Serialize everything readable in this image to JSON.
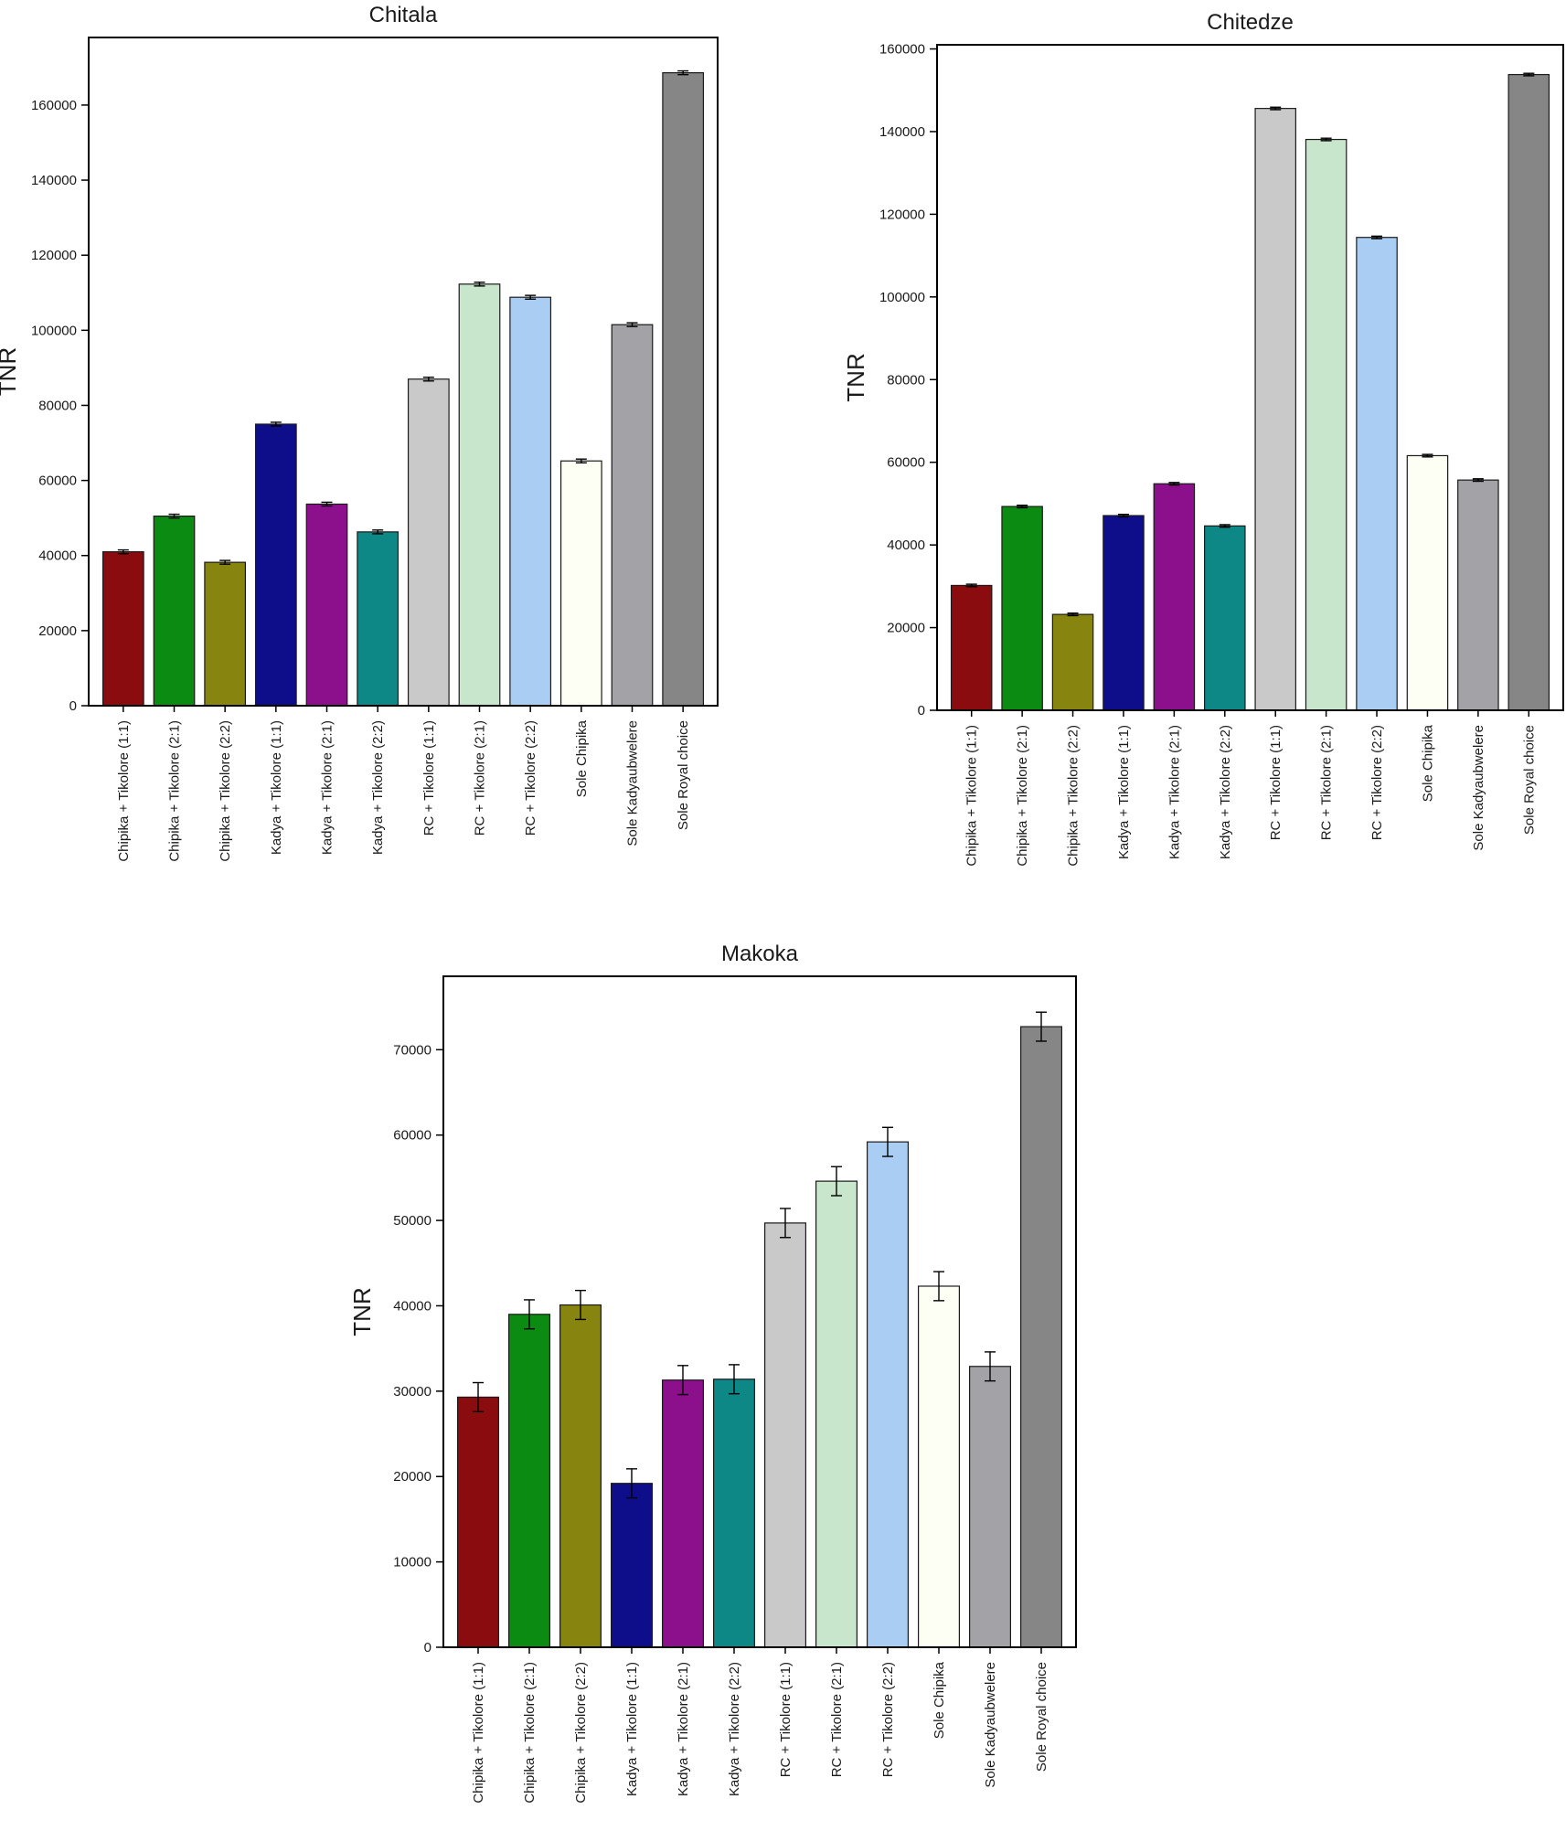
{
  "colors": [
    "#8b0c0e",
    "#0c8b12",
    "#87840f",
    "#0e0e8b",
    "#8c0f8c",
    "#0d8887",
    "#c9c9c9",
    "#c8e6cb",
    "#aacdf4",
    "#fefff4",
    "#a3a2a7",
    "#868686"
  ],
  "chart_data": [
    {
      "type": "bar",
      "title": "Chitala",
      "ylabel": "TNR",
      "xlabel": "",
      "ylim": [
        0,
        178000
      ],
      "yticks": [
        0,
        20000,
        40000,
        60000,
        80000,
        100000,
        120000,
        140000,
        160000
      ],
      "categories": [
        "Chipika + Tikolore (1:1)",
        "Chipika + Tikolore (2:1)",
        "Chipika + Tikolore (2:2)",
        "Kadya + Tikolore (1:1)",
        "Kadya + Tikolore (2:1)",
        "Kadya + Tikolore (2:2)",
        "RC + Tikolore (1:1)",
        "RC + Tikolore (2:1)",
        "RC + Tikolore (2:2)",
        "Sole Chipika",
        "Sole Kadyaubwelere",
        "Sole Royal choice"
      ],
      "values": [
        41000,
        50500,
        38200,
        75000,
        53700,
        46300,
        87000,
        112300,
        108800,
        65200,
        101500,
        168600
      ],
      "errors": [
        500,
        500,
        500,
        500,
        500,
        500,
        500,
        500,
        500,
        500,
        500,
        500
      ],
      "grid": false
    },
    {
      "type": "bar",
      "title": "Chitedze",
      "ylabel": "TNR",
      "xlabel": "",
      "ylim": [
        0,
        161000
      ],
      "yticks": [
        0,
        20000,
        40000,
        60000,
        80000,
        100000,
        120000,
        140000,
        160000
      ],
      "categories": [
        "Chipika + Tikolore (1:1)",
        "Chipika + Tikolore (2:1)",
        "Chipika + Tikolore (2:2)",
        "Kadya + Tikolore (1:1)",
        "Kadya + Tikolore (2:1)",
        "Kadya + Tikolore (2:2)",
        "RC + Tikolore (1:1)",
        "RC + Tikolore (2:1)",
        "RC + Tikolore (2:2)",
        "Sole Chipika",
        "Sole Kadyaubwelere",
        "Sole Royal choice"
      ],
      "values": [
        30200,
        49300,
        23200,
        47100,
        54800,
        44600,
        145600,
        138100,
        114400,
        61600,
        55700,
        153800
      ],
      "errors": [
        300,
        300,
        300,
        300,
        300,
        300,
        300,
        300,
        300,
        300,
        300,
        300
      ],
      "grid": false
    },
    {
      "type": "bar",
      "title": "Makoka",
      "ylabel": "TNR",
      "xlabel": "",
      "ylim": [
        0,
        78600
      ],
      "yticks": [
        0,
        10000,
        20000,
        30000,
        40000,
        50000,
        60000,
        70000
      ],
      "categories": [
        "Chipika + Tikolore (1:1)",
        "Chipika + Tikolore (2:1)",
        "Chipika + Tikolore (2:2)",
        "Kadya + Tikolore (1:1)",
        "Kadya + Tikolore (2:1)",
        "Kadya + Tikolore (2:2)",
        "RC + Tikolore (1:1)",
        "RC + Tikolore (2:1)",
        "RC + Tikolore (2:2)",
        "Sole Chipika",
        "Sole Kadyaubwelere",
        "Sole Royal choice"
      ],
      "values": [
        29300,
        39000,
        40100,
        19200,
        31300,
        31400,
        49700,
        54600,
        59200,
        42300,
        32900,
        72700
      ],
      "errors": [
        1700,
        1700,
        1700,
        1700,
        1700,
        1700,
        1700,
        1700,
        1700,
        1700,
        1700,
        1700
      ],
      "grid": false
    }
  ]
}
